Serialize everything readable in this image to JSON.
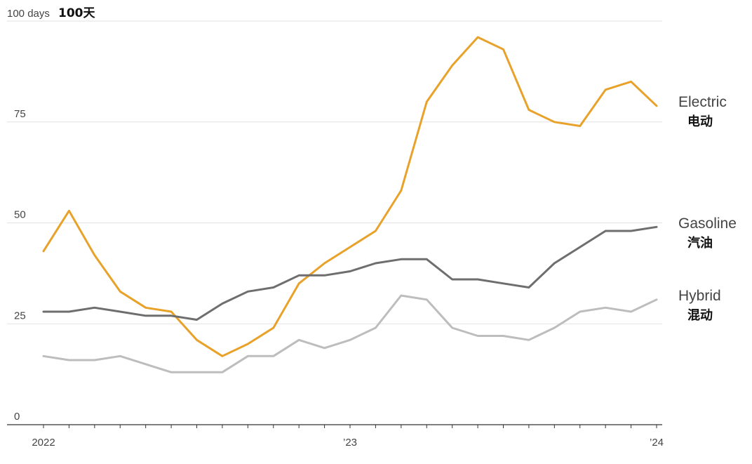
{
  "chart_data": {
    "type": "line",
    "y_unit_label": "100 days",
    "y_unit_label_zh": "100天",
    "ylim": [
      0,
      100
    ],
    "y_ticks": [
      0,
      25,
      50,
      75
    ],
    "y_tick_labels": [
      "0",
      "25",
      "50",
      "75"
    ],
    "x": [
      "2022-01",
      "2022-02",
      "2022-03",
      "2022-04",
      "2022-05",
      "2022-06",
      "2022-07",
      "2022-08",
      "2022-09",
      "2022-10",
      "2022-11",
      "2022-12",
      "2023-01",
      "2023-02",
      "2023-03",
      "2023-04",
      "2023-05",
      "2023-06",
      "2023-07",
      "2023-08",
      "2023-09",
      "2023-10",
      "2023-11",
      "2023-12",
      "2024-01"
    ],
    "x_tick_labels": [
      {
        "x": "2022-01",
        "label": "2022"
      },
      {
        "x": "2023-01",
        "label": "’23"
      },
      {
        "x": "2024-01",
        "label": "’24"
      }
    ],
    "grid": "horizontal",
    "series": [
      {
        "name": "Electric",
        "name_zh": "电动",
        "color": "#E8A22A",
        "values": [
          43,
          53,
          42,
          33,
          29,
          28,
          21,
          17,
          20,
          24,
          35,
          40,
          44,
          48,
          58,
          80,
          89,
          96,
          93,
          78,
          75,
          74,
          83,
          85,
          79
        ]
      },
      {
        "name": "Gasoline",
        "name_zh": "汽油",
        "color": "#6E6E6E",
        "values": [
          28,
          28,
          29,
          28,
          27,
          27,
          26,
          30,
          33,
          34,
          37,
          37,
          38,
          40,
          41,
          41,
          36,
          36,
          35,
          34,
          40,
          44,
          48,
          48,
          49
        ]
      },
      {
        "name": "Hybrid",
        "name_zh": "混动",
        "color": "#BDBDBD",
        "values": [
          17,
          16,
          16,
          17,
          15,
          13,
          13,
          13,
          17,
          17,
          21,
          19,
          21,
          24,
          32,
          31,
          24,
          22,
          22,
          21,
          24,
          28,
          29,
          28,
          31
        ]
      }
    ]
  }
}
